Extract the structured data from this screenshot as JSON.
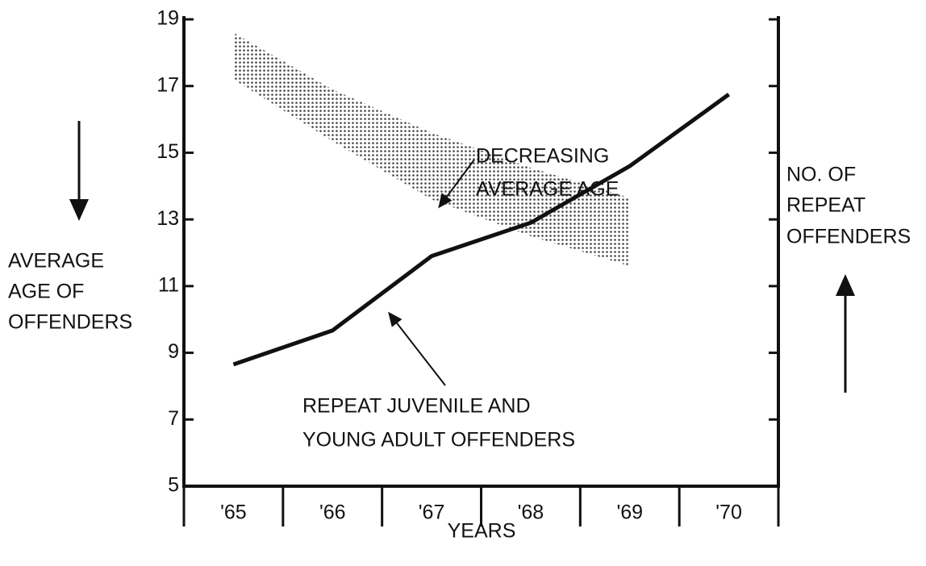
{
  "chart_data": {
    "type": "line",
    "categories": [
      "'65",
      "'66",
      "'67",
      "'68",
      "'69",
      "'70"
    ],
    "ylim": [
      5,
      19
    ],
    "yticks": [
      5,
      7,
      9,
      11,
      13,
      15,
      17,
      19
    ],
    "series": [
      {
        "color": "#111111",
        "values": [
          8.65,
          9.67,
          11.9,
          12.9,
          14.6,
          16.75
        ]
      }
    ],
    "band": {
      "color": "#555555",
      "upper": [
        18.6,
        16.9,
        15.6,
        14.55,
        13.65,
        null
      ],
      "lower": [
        17.2,
        15.35,
        13.6,
        12.5,
        11.6,
        null
      ]
    },
    "xlabel": "YEARS",
    "ylabel": [
      "AVERAGE",
      "AGE OF",
      "OFFENDERS"
    ],
    "y2label": [
      "NO. OF",
      "REPEAT",
      "OFFENDERS"
    ],
    "annotations": [
      {
        "text": [
          "DECREASING",
          "AVERAGE AGE"
        ]
      },
      {
        "text": [
          "REPEAT JUVENILE AND",
          "YOUNG ADULT OFFENDERS"
        ]
      }
    ]
  }
}
